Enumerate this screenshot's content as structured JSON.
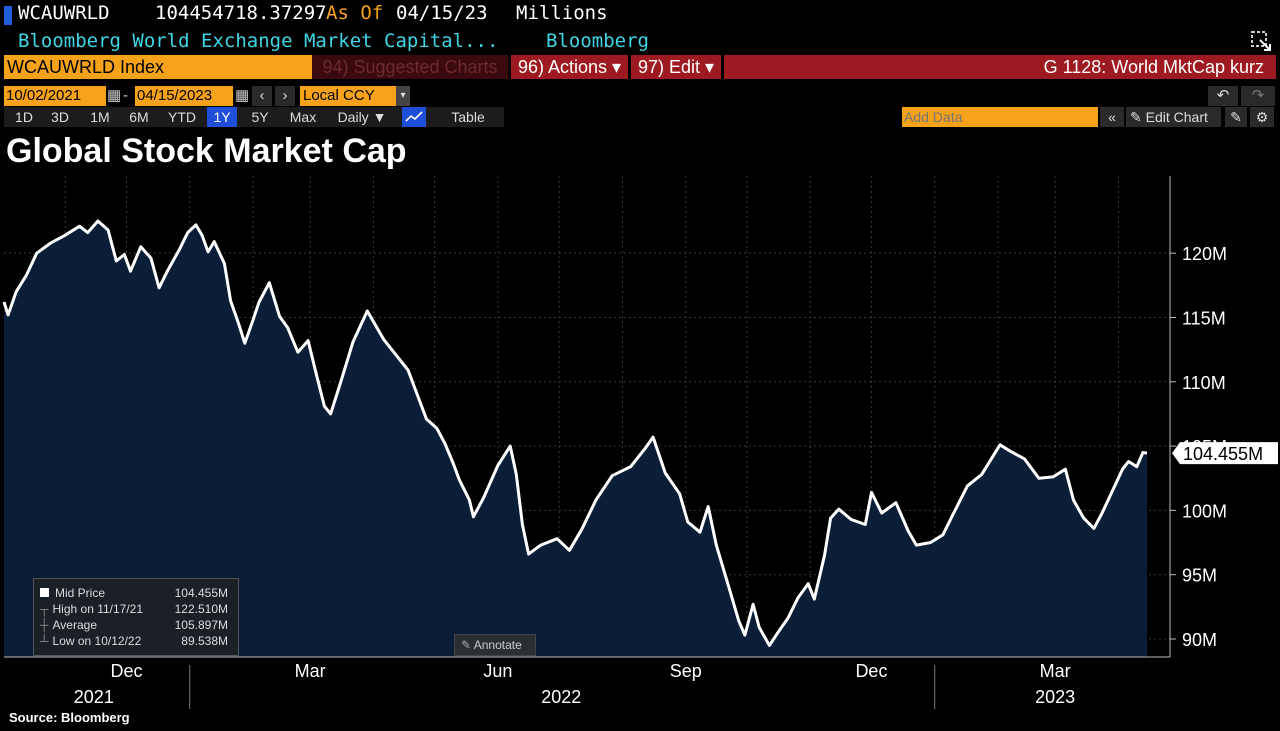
{
  "header": {
    "ticker": "WCAUWRLD",
    "last_value": "104454718.37297",
    "as_of_label": "As Of",
    "as_of_date": "04/15/23",
    "units": "Millions",
    "description": "Bloomberg World Exchange Market Capital...",
    "source_name": "Bloomberg"
  },
  "toolbar": {
    "security": "WCAUWRLD Index",
    "suggested_charts": "94) Suggested Charts",
    "actions": "96) Actions ▾",
    "edit": "97) Edit ▾",
    "chart_name": "G 1128: World MktCap kurz",
    "start_date": "10/02/2021",
    "end_date": "04/15/2023",
    "date_sep": "-",
    "currency": "Local CCY",
    "periods": [
      "1D",
      "3D",
      "1M",
      "6M",
      "YTD",
      "1Y",
      "5Y",
      "Max"
    ],
    "active_period": "1Y",
    "frequency": "Daily ▼",
    "table_label": "Table",
    "add_data_placeholder": "Add Data",
    "edit_chart_label": "Edit Chart"
  },
  "colors": {
    "area_fill": "#0b1e37",
    "line": "#ffffff",
    "orange": "#f7a21b",
    "red_bar": "#9e1a21",
    "cyan": "#3fd6e6",
    "active_period": "#1f4fd8"
  },
  "legend": {
    "rows": [
      {
        "label": "Mid Price",
        "value": "104.455M"
      },
      {
        "label": "High on 11/17/21",
        "value": "122.510M"
      },
      {
        "label": "Average",
        "value": "105.897M"
      },
      {
        "label": "Low on 10/12/22",
        "value": "89.538M"
      }
    ]
  },
  "annotate_label": "Annotate",
  "source": "Source: Bloomberg",
  "chart_data": {
    "type": "area",
    "title": "Global Stock Market Cap",
    "x_range": [
      "2021-10-02",
      "2023-04-15"
    ],
    "ylim": [
      88.6,
      126
    ],
    "y_ticks": [
      "90M",
      "95M",
      "100M",
      "105M",
      "110M",
      "115M",
      "120M"
    ],
    "y_tick_values": [
      90,
      95,
      100,
      105,
      110,
      115,
      120
    ],
    "x_month_labels": [
      {
        "label": "Dec",
        "date": "2021-12-01"
      },
      {
        "label": "Mar",
        "date": "2022-03-01"
      },
      {
        "label": "Jun",
        "date": "2022-06-01"
      },
      {
        "label": "Sep",
        "date": "2022-09-01"
      },
      {
        "label": "Dec",
        "date": "2022-12-01"
      },
      {
        "label": "Mar",
        "date": "2023-03-01"
      }
    ],
    "x_year_labels": [
      {
        "label": "2021",
        "date": "2021-11-15"
      },
      {
        "label": "2022",
        "date": "2022-07-02"
      },
      {
        "label": "2023",
        "date": "2023-03-01"
      }
    ],
    "last_value_label": "104.455M",
    "grid": true,
    "series": [
      {
        "values_M": [
          [
            "2021-10-02",
            116.2
          ],
          [
            "2021-10-04",
            115.2
          ],
          [
            "2021-10-08",
            117.0
          ],
          [
            "2021-10-13",
            118.3
          ],
          [
            "2021-10-18",
            120.0
          ],
          [
            "2021-10-25",
            120.8
          ],
          [
            "2021-11-01",
            121.4
          ],
          [
            "2021-11-08",
            122.1
          ],
          [
            "2021-11-12",
            121.6
          ],
          [
            "2021-11-17",
            122.5
          ],
          [
            "2021-11-22",
            121.8
          ],
          [
            "2021-11-26",
            119.4
          ],
          [
            "2021-11-30",
            119.9
          ],
          [
            "2021-12-03",
            118.6
          ],
          [
            "2021-12-08",
            120.5
          ],
          [
            "2021-12-13",
            119.6
          ],
          [
            "2021-12-17",
            117.3
          ],
          [
            "2021-12-21",
            118.6
          ],
          [
            "2021-12-27",
            120.3
          ],
          [
            "2021-12-31",
            121.6
          ],
          [
            "2022-01-04",
            122.2
          ],
          [
            "2022-01-07",
            121.4
          ],
          [
            "2022-01-10",
            120.1
          ],
          [
            "2022-01-13",
            120.9
          ],
          [
            "2022-01-18",
            119.2
          ],
          [
            "2022-01-21",
            116.3
          ],
          [
            "2022-01-25",
            114.5
          ],
          [
            "2022-01-28",
            113.0
          ],
          [
            "2022-02-01",
            114.8
          ],
          [
            "2022-02-04",
            116.2
          ],
          [
            "2022-02-09",
            117.7
          ],
          [
            "2022-02-14",
            115.1
          ],
          [
            "2022-02-18",
            114.2
          ],
          [
            "2022-02-23",
            112.3
          ],
          [
            "2022-02-28",
            113.2
          ],
          [
            "2022-03-04",
            110.6
          ],
          [
            "2022-03-08",
            108.1
          ],
          [
            "2022-03-11",
            107.5
          ],
          [
            "2022-03-16",
            110.0
          ],
          [
            "2022-03-22",
            113.1
          ],
          [
            "2022-03-29",
            115.5
          ],
          [
            "2022-04-02",
            114.4
          ],
          [
            "2022-04-06",
            113.3
          ],
          [
            "2022-04-12",
            112.1
          ],
          [
            "2022-04-18",
            110.9
          ],
          [
            "2022-04-22",
            109.2
          ],
          [
            "2022-04-27",
            107.1
          ],
          [
            "2022-05-02",
            106.4
          ],
          [
            "2022-05-06",
            105.2
          ],
          [
            "2022-05-10",
            103.7
          ],
          [
            "2022-05-13",
            102.4
          ],
          [
            "2022-05-18",
            100.8
          ],
          [
            "2022-05-20",
            99.5
          ],
          [
            "2022-05-25",
            101.0
          ],
          [
            "2022-06-01",
            103.5
          ],
          [
            "2022-06-07",
            105.0
          ],
          [
            "2022-06-10",
            102.8
          ],
          [
            "2022-06-13",
            98.9
          ],
          [
            "2022-06-16",
            96.6
          ],
          [
            "2022-06-22",
            97.3
          ],
          [
            "2022-06-30",
            97.8
          ],
          [
            "2022-07-06",
            96.9
          ],
          [
            "2022-07-12",
            98.5
          ],
          [
            "2022-07-19",
            100.8
          ],
          [
            "2022-07-27",
            102.7
          ],
          [
            "2022-08-05",
            103.4
          ],
          [
            "2022-08-12",
            104.8
          ],
          [
            "2022-08-16",
            105.7
          ],
          [
            "2022-08-22",
            102.9
          ],
          [
            "2022-08-29",
            101.3
          ],
          [
            "2022-09-02",
            99.1
          ],
          [
            "2022-09-08",
            98.3
          ],
          [
            "2022-09-12",
            100.3
          ],
          [
            "2022-09-16",
            97.3
          ],
          [
            "2022-09-22",
            94.1
          ],
          [
            "2022-09-27",
            91.4
          ],
          [
            "2022-09-30",
            90.3
          ],
          [
            "2022-10-04",
            92.7
          ],
          [
            "2022-10-07",
            90.9
          ],
          [
            "2022-10-12",
            89.5
          ],
          [
            "2022-10-17",
            90.7
          ],
          [
            "2022-10-21",
            91.6
          ],
          [
            "2022-10-26",
            93.2
          ],
          [
            "2022-10-31",
            94.3
          ],
          [
            "2022-11-03",
            93.1
          ],
          [
            "2022-11-08",
            96.5
          ],
          [
            "2022-11-11",
            99.4
          ],
          [
            "2022-11-15",
            100.1
          ],
          [
            "2022-11-21",
            99.3
          ],
          [
            "2022-11-28",
            98.9
          ],
          [
            "2022-12-01",
            101.4
          ],
          [
            "2022-12-06",
            99.8
          ],
          [
            "2022-12-13",
            100.6
          ],
          [
            "2022-12-19",
            98.4
          ],
          [
            "2022-12-23",
            97.3
          ],
          [
            "2022-12-30",
            97.5
          ],
          [
            "2023-01-05",
            98.1
          ],
          [
            "2023-01-10",
            99.7
          ],
          [
            "2023-01-17",
            101.9
          ],
          [
            "2023-01-24",
            102.8
          ],
          [
            "2023-02-02",
            105.1
          ],
          [
            "2023-02-07",
            104.6
          ],
          [
            "2023-02-14",
            104.0
          ],
          [
            "2023-02-21",
            102.5
          ],
          [
            "2023-02-28",
            102.6
          ],
          [
            "2023-03-06",
            103.2
          ],
          [
            "2023-03-10",
            100.8
          ],
          [
            "2023-03-15",
            99.4
          ],
          [
            "2023-03-20",
            98.6
          ],
          [
            "2023-03-24",
            99.8
          ],
          [
            "2023-03-29",
            101.5
          ],
          [
            "2023-04-03",
            103.2
          ],
          [
            "2023-04-06",
            103.8
          ],
          [
            "2023-04-10",
            103.4
          ],
          [
            "2023-04-13",
            104.5
          ],
          [
            "2023-04-15",
            104.455
          ]
        ]
      }
    ]
  }
}
